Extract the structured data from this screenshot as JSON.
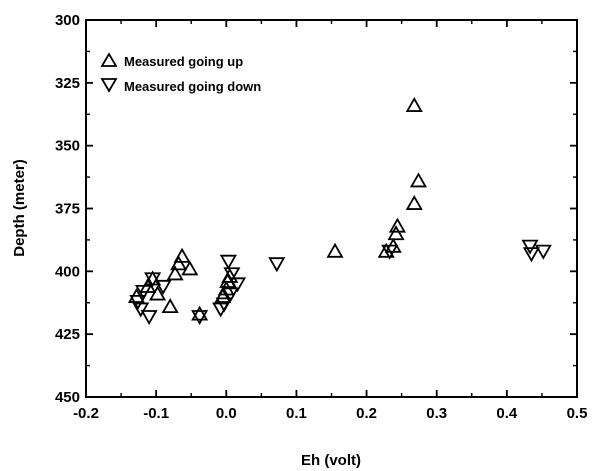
{
  "chart_data": {
    "type": "scatter",
    "title": "",
    "xlabel": "Eh (volt)",
    "ylabel": "Depth (meter)",
    "xlim": [
      -0.2,
      0.5
    ],
    "ylim": [
      300,
      450
    ],
    "y_inverted": true,
    "x_ticks": [
      "-0.2",
      "-0.1",
      "0.0",
      "0.1",
      "0.2",
      "0.3",
      "0.4",
      "0.5"
    ],
    "y_ticks": [
      "300",
      "325",
      "350",
      "375",
      "400",
      "425",
      "450"
    ],
    "x_tick_values": [
      -0.2,
      -0.1,
      0.0,
      0.1,
      0.2,
      0.3,
      0.4,
      0.5
    ],
    "y_tick_values": [
      300,
      325,
      350,
      375,
      400,
      425,
      450
    ],
    "grid": false,
    "legend_position": "top-left",
    "marker_color": "#000000",
    "series": [
      {
        "name": "Measured going up",
        "marker": "triangle-up",
        "points": [
          {
            "x": 0.268,
            "y": 334
          },
          {
            "x": 0.274,
            "y": 364
          },
          {
            "x": 0.268,
            "y": 373
          },
          {
            "x": 0.155,
            "y": 392
          },
          {
            "x": 0.228,
            "y": 392
          },
          {
            "x": 0.238,
            "y": 390
          },
          {
            "x": 0.242,
            "y": 385
          },
          {
            "x": 0.244,
            "y": 382
          },
          {
            "x": -0.063,
            "y": 394
          },
          {
            "x": -0.068,
            "y": 397
          },
          {
            "x": -0.052,
            "y": 399
          },
          {
            "x": -0.073,
            "y": 401
          },
          {
            "x": -0.105,
            "y": 403
          },
          {
            "x": -0.112,
            "y": 406
          },
          {
            "x": -0.098,
            "y": 409
          },
          {
            "x": -0.08,
            "y": 414
          },
          {
            "x": -0.128,
            "y": 410
          },
          {
            "x": -0.038,
            "y": 417
          },
          {
            "x": -0.005,
            "y": 410
          },
          {
            "x": 0.0,
            "y": 407
          },
          {
            "x": 0.002,
            "y": 404
          },
          {
            "x": 0.005,
            "y": 402
          }
        ]
      },
      {
        "name": "Measured going down",
        "marker": "triangle-down",
        "points": [
          {
            "x": 0.003,
            "y": 396
          },
          {
            "x": 0.008,
            "y": 401
          },
          {
            "x": 0.016,
            "y": 405
          },
          {
            "x": 0.006,
            "y": 409
          },
          {
            "x": -0.003,
            "y": 413
          },
          {
            "x": -0.008,
            "y": 415
          },
          {
            "x": -0.038,
            "y": 418
          },
          {
            "x": -0.105,
            "y": 403
          },
          {
            "x": -0.118,
            "y": 408
          },
          {
            "x": -0.126,
            "y": 412
          },
          {
            "x": -0.122,
            "y": 415
          },
          {
            "x": -0.11,
            "y": 418
          },
          {
            "x": -0.09,
            "y": 406
          },
          {
            "x": 0.072,
            "y": 397
          },
          {
            "x": 0.233,
            "y": 392
          },
          {
            "x": 0.433,
            "y": 390
          },
          {
            "x": 0.435,
            "y": 393
          },
          {
            "x": 0.452,
            "y": 392
          }
        ]
      }
    ]
  }
}
